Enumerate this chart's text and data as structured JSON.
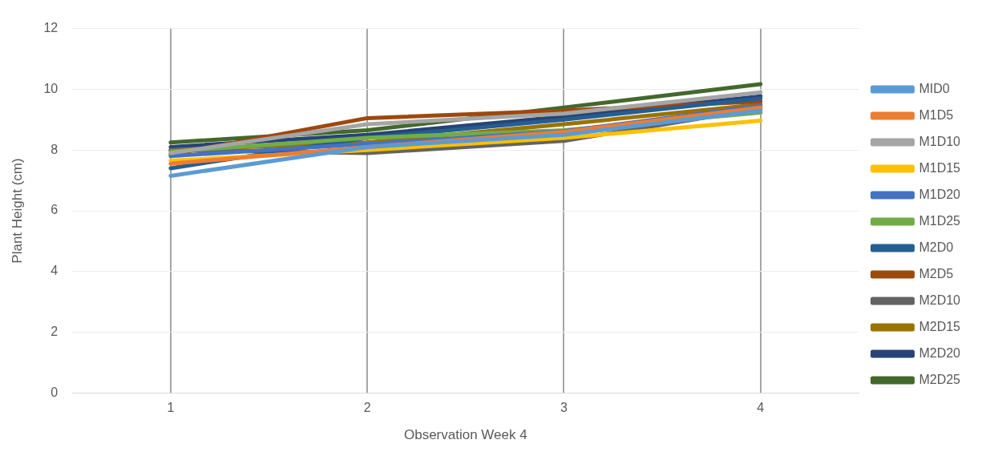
{
  "chart_data": {
    "type": "line",
    "xlabel": "Observation Week 4",
    "ylabel": "Plant Height (cm)",
    "categories": [
      "1",
      "2",
      "3",
      "4"
    ],
    "ylim": [
      0,
      12
    ],
    "yticks": [
      0,
      2,
      4,
      6,
      8,
      10,
      12
    ],
    "grid": true,
    "legend": "right",
    "marker": "none",
    "line_style": "solid",
    "series": [
      {
        "name": "MID0",
        "color": "#5b9bd5",
        "values": [
          7.15,
          8.1,
          8.5,
          9.3
        ]
      },
      {
        "name": "M1D5",
        "color": "#ed7d31",
        "values": [
          7.55,
          8.1,
          8.6,
          9.4
        ]
      },
      {
        "name": "M1D10",
        "color": "#a5a5a5",
        "values": [
          7.9,
          8.85,
          9.2,
          9.9
        ]
      },
      {
        "name": "M1D15",
        "color": "#ffc000",
        "values": [
          7.65,
          8.0,
          8.4,
          8.97
        ]
      },
      {
        "name": "M1D20",
        "color": "#4472c4",
        "values": [
          7.8,
          8.2,
          8.62,
          9.45
        ]
      },
      {
        "name": "M1D25",
        "color": "#70ad47",
        "values": [
          7.95,
          8.4,
          8.65,
          9.23
        ]
      },
      {
        "name": "M2D0",
        "color": "#255e91",
        "values": [
          7.4,
          8.4,
          9.0,
          9.7
        ]
      },
      {
        "name": "M2D5",
        "color": "#9e480e",
        "values": [
          7.85,
          9.05,
          9.3,
          9.6
        ]
      },
      {
        "name": "M2D10",
        "color": "#636363",
        "values": [
          8.0,
          7.9,
          8.3,
          9.37
        ]
      },
      {
        "name": "M2D15",
        "color": "#997300",
        "values": [
          8.0,
          8.25,
          8.85,
          9.5
        ]
      },
      {
        "name": "M2D20",
        "color": "#264478",
        "values": [
          8.1,
          8.5,
          9.1,
          9.77
        ]
      },
      {
        "name": "M2D25",
        "color": "#43682b",
        "values": [
          8.25,
          8.65,
          9.4,
          10.17
        ]
      }
    ]
  }
}
